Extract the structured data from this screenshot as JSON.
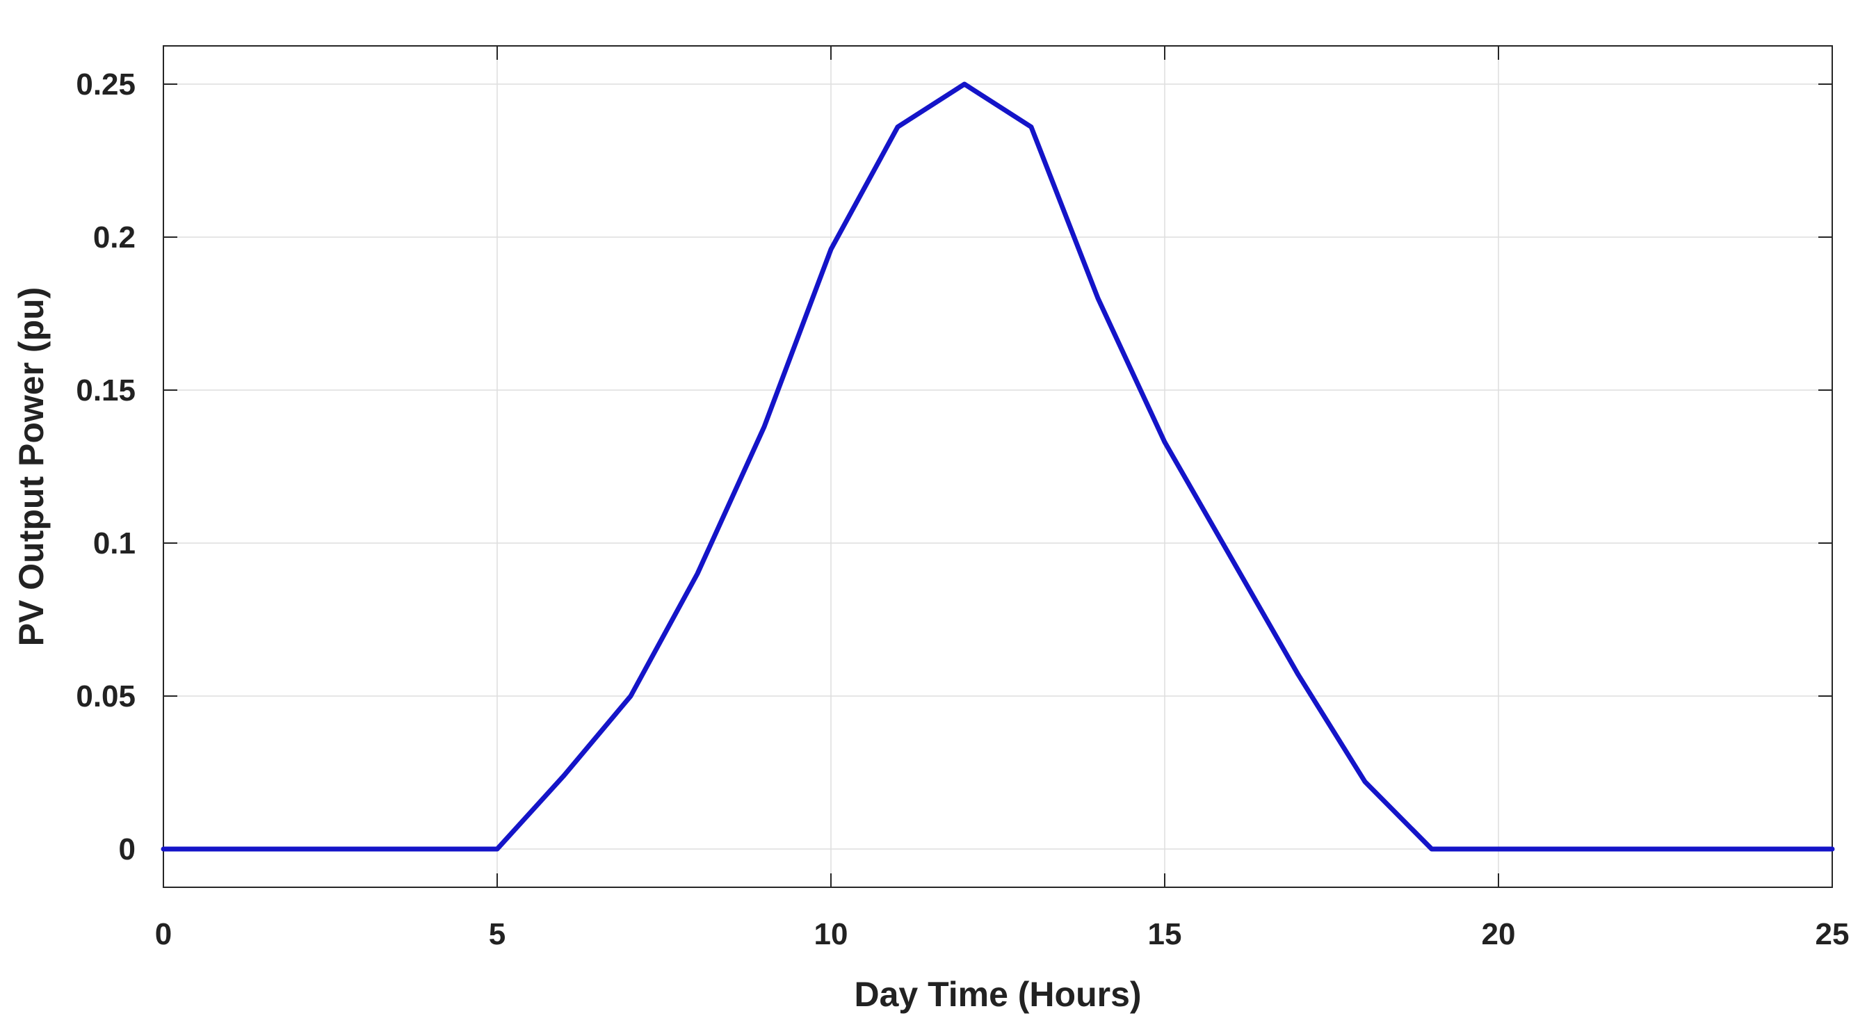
{
  "chart_data": {
    "type": "line",
    "title": "",
    "xlabel": "Day Time (Hours)",
    "ylabel": "PV Output Power (pu)",
    "xlim": [
      0,
      25
    ],
    "ylim": [
      -0.0125,
      0.2625
    ],
    "x_ticks": [
      0,
      5,
      10,
      15,
      20,
      25
    ],
    "x_tick_labels": [
      "0",
      "5",
      "10",
      "15",
      "20",
      "25"
    ],
    "y_ticks": [
      0,
      0.05,
      0.1,
      0.15,
      0.2,
      0.25
    ],
    "y_tick_labels": [
      "0",
      "0.05",
      "0.1",
      "0.15",
      "0.2",
      "0.25"
    ],
    "grid": true,
    "box": true,
    "legend": "none",
    "series": [
      {
        "color": "#1414c8",
        "x": [
          0,
          1,
          2,
          3,
          4,
          5,
          6,
          7,
          8,
          9,
          10,
          11,
          12,
          13,
          14,
          15,
          16,
          17,
          18,
          19,
          20,
          21,
          22,
          23,
          24,
          25
        ],
        "y": [
          0,
          0,
          0,
          0,
          0,
          0,
          0.024,
          0.05,
          0.09,
          0.138,
          0.196,
          0.236,
          0.25,
          0.236,
          0.18,
          0.133,
          0.095,
          0.057,
          0.022,
          0,
          0,
          0,
          0,
          0,
          0,
          0
        ]
      }
    ]
  }
}
